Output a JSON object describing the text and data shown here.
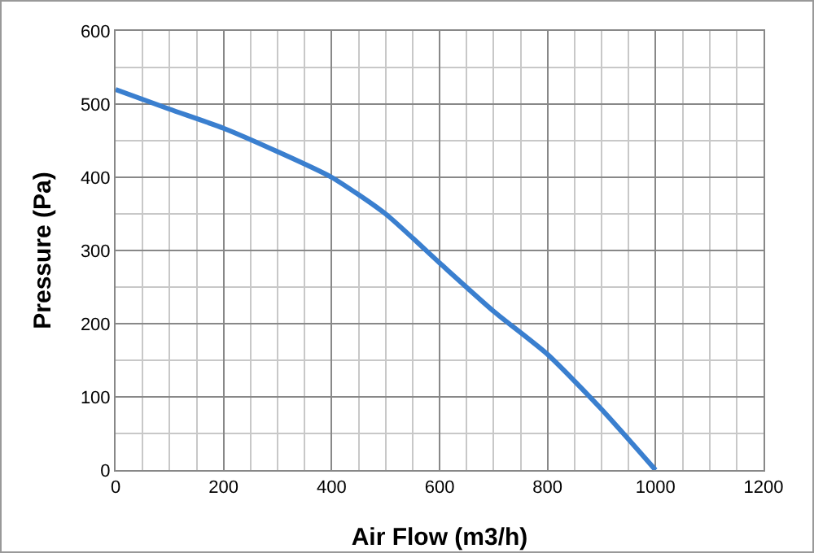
{
  "chart_data": {
    "type": "line",
    "xlabel": "Air Flow (m3/h)",
    "ylabel": "Pressure (Pa)",
    "x": [
      0,
      100,
      200,
      300,
      400,
      500,
      600,
      700,
      800,
      900,
      1000
    ],
    "series": [
      {
        "color": "#3a7fcf",
        "values": [
          520,
          493,
          467,
          435,
          400,
          350,
          283,
          217,
          158,
          83,
          0
        ]
      }
    ],
    "xlim": [
      0,
      1200
    ],
    "xticks": [
      0,
      200,
      400,
      600,
      800,
      1000,
      1200
    ],
    "ylim": [
      0,
      600
    ],
    "yticks": [
      0,
      100,
      200,
      300,
      400,
      500,
      600
    ],
    "grid": true,
    "marker": "none",
    "line_style": "solid"
  }
}
